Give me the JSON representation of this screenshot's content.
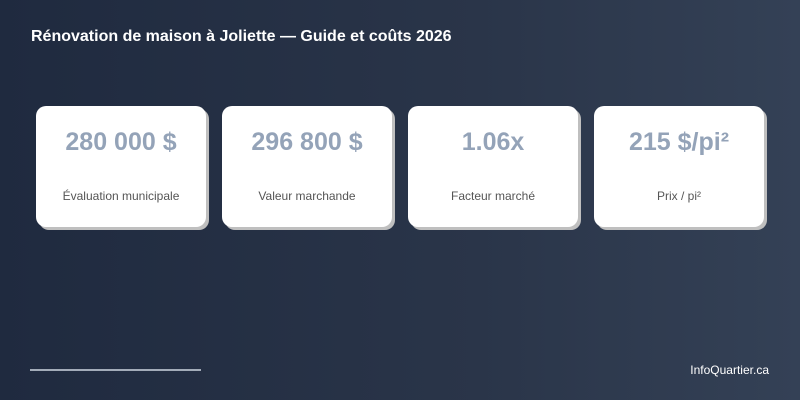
{
  "title": "Rénovation de maison à Joliette — Guide et coûts 2026",
  "cards": [
    {
      "value": "280 000 $",
      "label": "Évaluation municipale"
    },
    {
      "value": "296 800 $",
      "label": "Valeur marchande"
    },
    {
      "value": "1.06x",
      "label": "Facteur marché"
    },
    {
      "value": "215 $/pi²",
      "label": "Prix / pi²"
    }
  ],
  "footer": {
    "brand": "InfoQuartier.ca"
  }
}
